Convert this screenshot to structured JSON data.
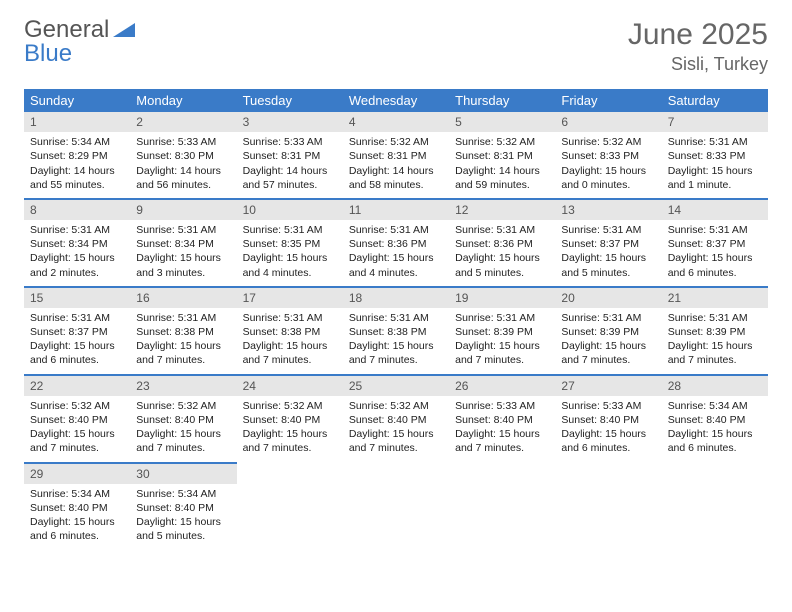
{
  "logo": {
    "text1": "General",
    "text2": "Blue"
  },
  "title": "June 2025",
  "location": "Sisli, Turkey",
  "colors": {
    "header_bg": "#3a7bc8",
    "header_fg": "#ffffff",
    "daynum_bg": "#e6e6e6",
    "row_divider": "#3a7bc8",
    "text": "#222222",
    "title_color": "#666666"
  },
  "weekdays": [
    "Sunday",
    "Monday",
    "Tuesday",
    "Wednesday",
    "Thursday",
    "Friday",
    "Saturday"
  ],
  "weeks": [
    [
      {
        "n": "1",
        "sr": "5:34 AM",
        "ss": "8:29 PM",
        "dl": "14 hours and 55 minutes."
      },
      {
        "n": "2",
        "sr": "5:33 AM",
        "ss": "8:30 PM",
        "dl": "14 hours and 56 minutes."
      },
      {
        "n": "3",
        "sr": "5:33 AM",
        "ss": "8:31 PM",
        "dl": "14 hours and 57 minutes."
      },
      {
        "n": "4",
        "sr": "5:32 AM",
        "ss": "8:31 PM",
        "dl": "14 hours and 58 minutes."
      },
      {
        "n": "5",
        "sr": "5:32 AM",
        "ss": "8:31 PM",
        "dl": "14 hours and 59 minutes."
      },
      {
        "n": "6",
        "sr": "5:32 AM",
        "ss": "8:33 PM",
        "dl": "15 hours and 0 minutes."
      },
      {
        "n": "7",
        "sr": "5:31 AM",
        "ss": "8:33 PM",
        "dl": "15 hours and 1 minute."
      }
    ],
    [
      {
        "n": "8",
        "sr": "5:31 AM",
        "ss": "8:34 PM",
        "dl": "15 hours and 2 minutes."
      },
      {
        "n": "9",
        "sr": "5:31 AM",
        "ss": "8:34 PM",
        "dl": "15 hours and 3 minutes."
      },
      {
        "n": "10",
        "sr": "5:31 AM",
        "ss": "8:35 PM",
        "dl": "15 hours and 4 minutes."
      },
      {
        "n": "11",
        "sr": "5:31 AM",
        "ss": "8:36 PM",
        "dl": "15 hours and 4 minutes."
      },
      {
        "n": "12",
        "sr": "5:31 AM",
        "ss": "8:36 PM",
        "dl": "15 hours and 5 minutes."
      },
      {
        "n": "13",
        "sr": "5:31 AM",
        "ss": "8:37 PM",
        "dl": "15 hours and 5 minutes."
      },
      {
        "n": "14",
        "sr": "5:31 AM",
        "ss": "8:37 PM",
        "dl": "15 hours and 6 minutes."
      }
    ],
    [
      {
        "n": "15",
        "sr": "5:31 AM",
        "ss": "8:37 PM",
        "dl": "15 hours and 6 minutes."
      },
      {
        "n": "16",
        "sr": "5:31 AM",
        "ss": "8:38 PM",
        "dl": "15 hours and 7 minutes."
      },
      {
        "n": "17",
        "sr": "5:31 AM",
        "ss": "8:38 PM",
        "dl": "15 hours and 7 minutes."
      },
      {
        "n": "18",
        "sr": "5:31 AM",
        "ss": "8:38 PM",
        "dl": "15 hours and 7 minutes."
      },
      {
        "n": "19",
        "sr": "5:31 AM",
        "ss": "8:39 PM",
        "dl": "15 hours and 7 minutes."
      },
      {
        "n": "20",
        "sr": "5:31 AM",
        "ss": "8:39 PM",
        "dl": "15 hours and 7 minutes."
      },
      {
        "n": "21",
        "sr": "5:31 AM",
        "ss": "8:39 PM",
        "dl": "15 hours and 7 minutes."
      }
    ],
    [
      {
        "n": "22",
        "sr": "5:32 AM",
        "ss": "8:40 PM",
        "dl": "15 hours and 7 minutes."
      },
      {
        "n": "23",
        "sr": "5:32 AM",
        "ss": "8:40 PM",
        "dl": "15 hours and 7 minutes."
      },
      {
        "n": "24",
        "sr": "5:32 AM",
        "ss": "8:40 PM",
        "dl": "15 hours and 7 minutes."
      },
      {
        "n": "25",
        "sr": "5:32 AM",
        "ss": "8:40 PM",
        "dl": "15 hours and 7 minutes."
      },
      {
        "n": "26",
        "sr": "5:33 AM",
        "ss": "8:40 PM",
        "dl": "15 hours and 7 minutes."
      },
      {
        "n": "27",
        "sr": "5:33 AM",
        "ss": "8:40 PM",
        "dl": "15 hours and 6 minutes."
      },
      {
        "n": "28",
        "sr": "5:34 AM",
        "ss": "8:40 PM",
        "dl": "15 hours and 6 minutes."
      }
    ],
    [
      {
        "n": "29",
        "sr": "5:34 AM",
        "ss": "8:40 PM",
        "dl": "15 hours and 6 minutes."
      },
      {
        "n": "30",
        "sr": "5:34 AM",
        "ss": "8:40 PM",
        "dl": "15 hours and 5 minutes."
      },
      null,
      null,
      null,
      null,
      null
    ]
  ],
  "labels": {
    "sunrise": "Sunrise: ",
    "sunset": "Sunset: ",
    "daylight": "Daylight: "
  }
}
